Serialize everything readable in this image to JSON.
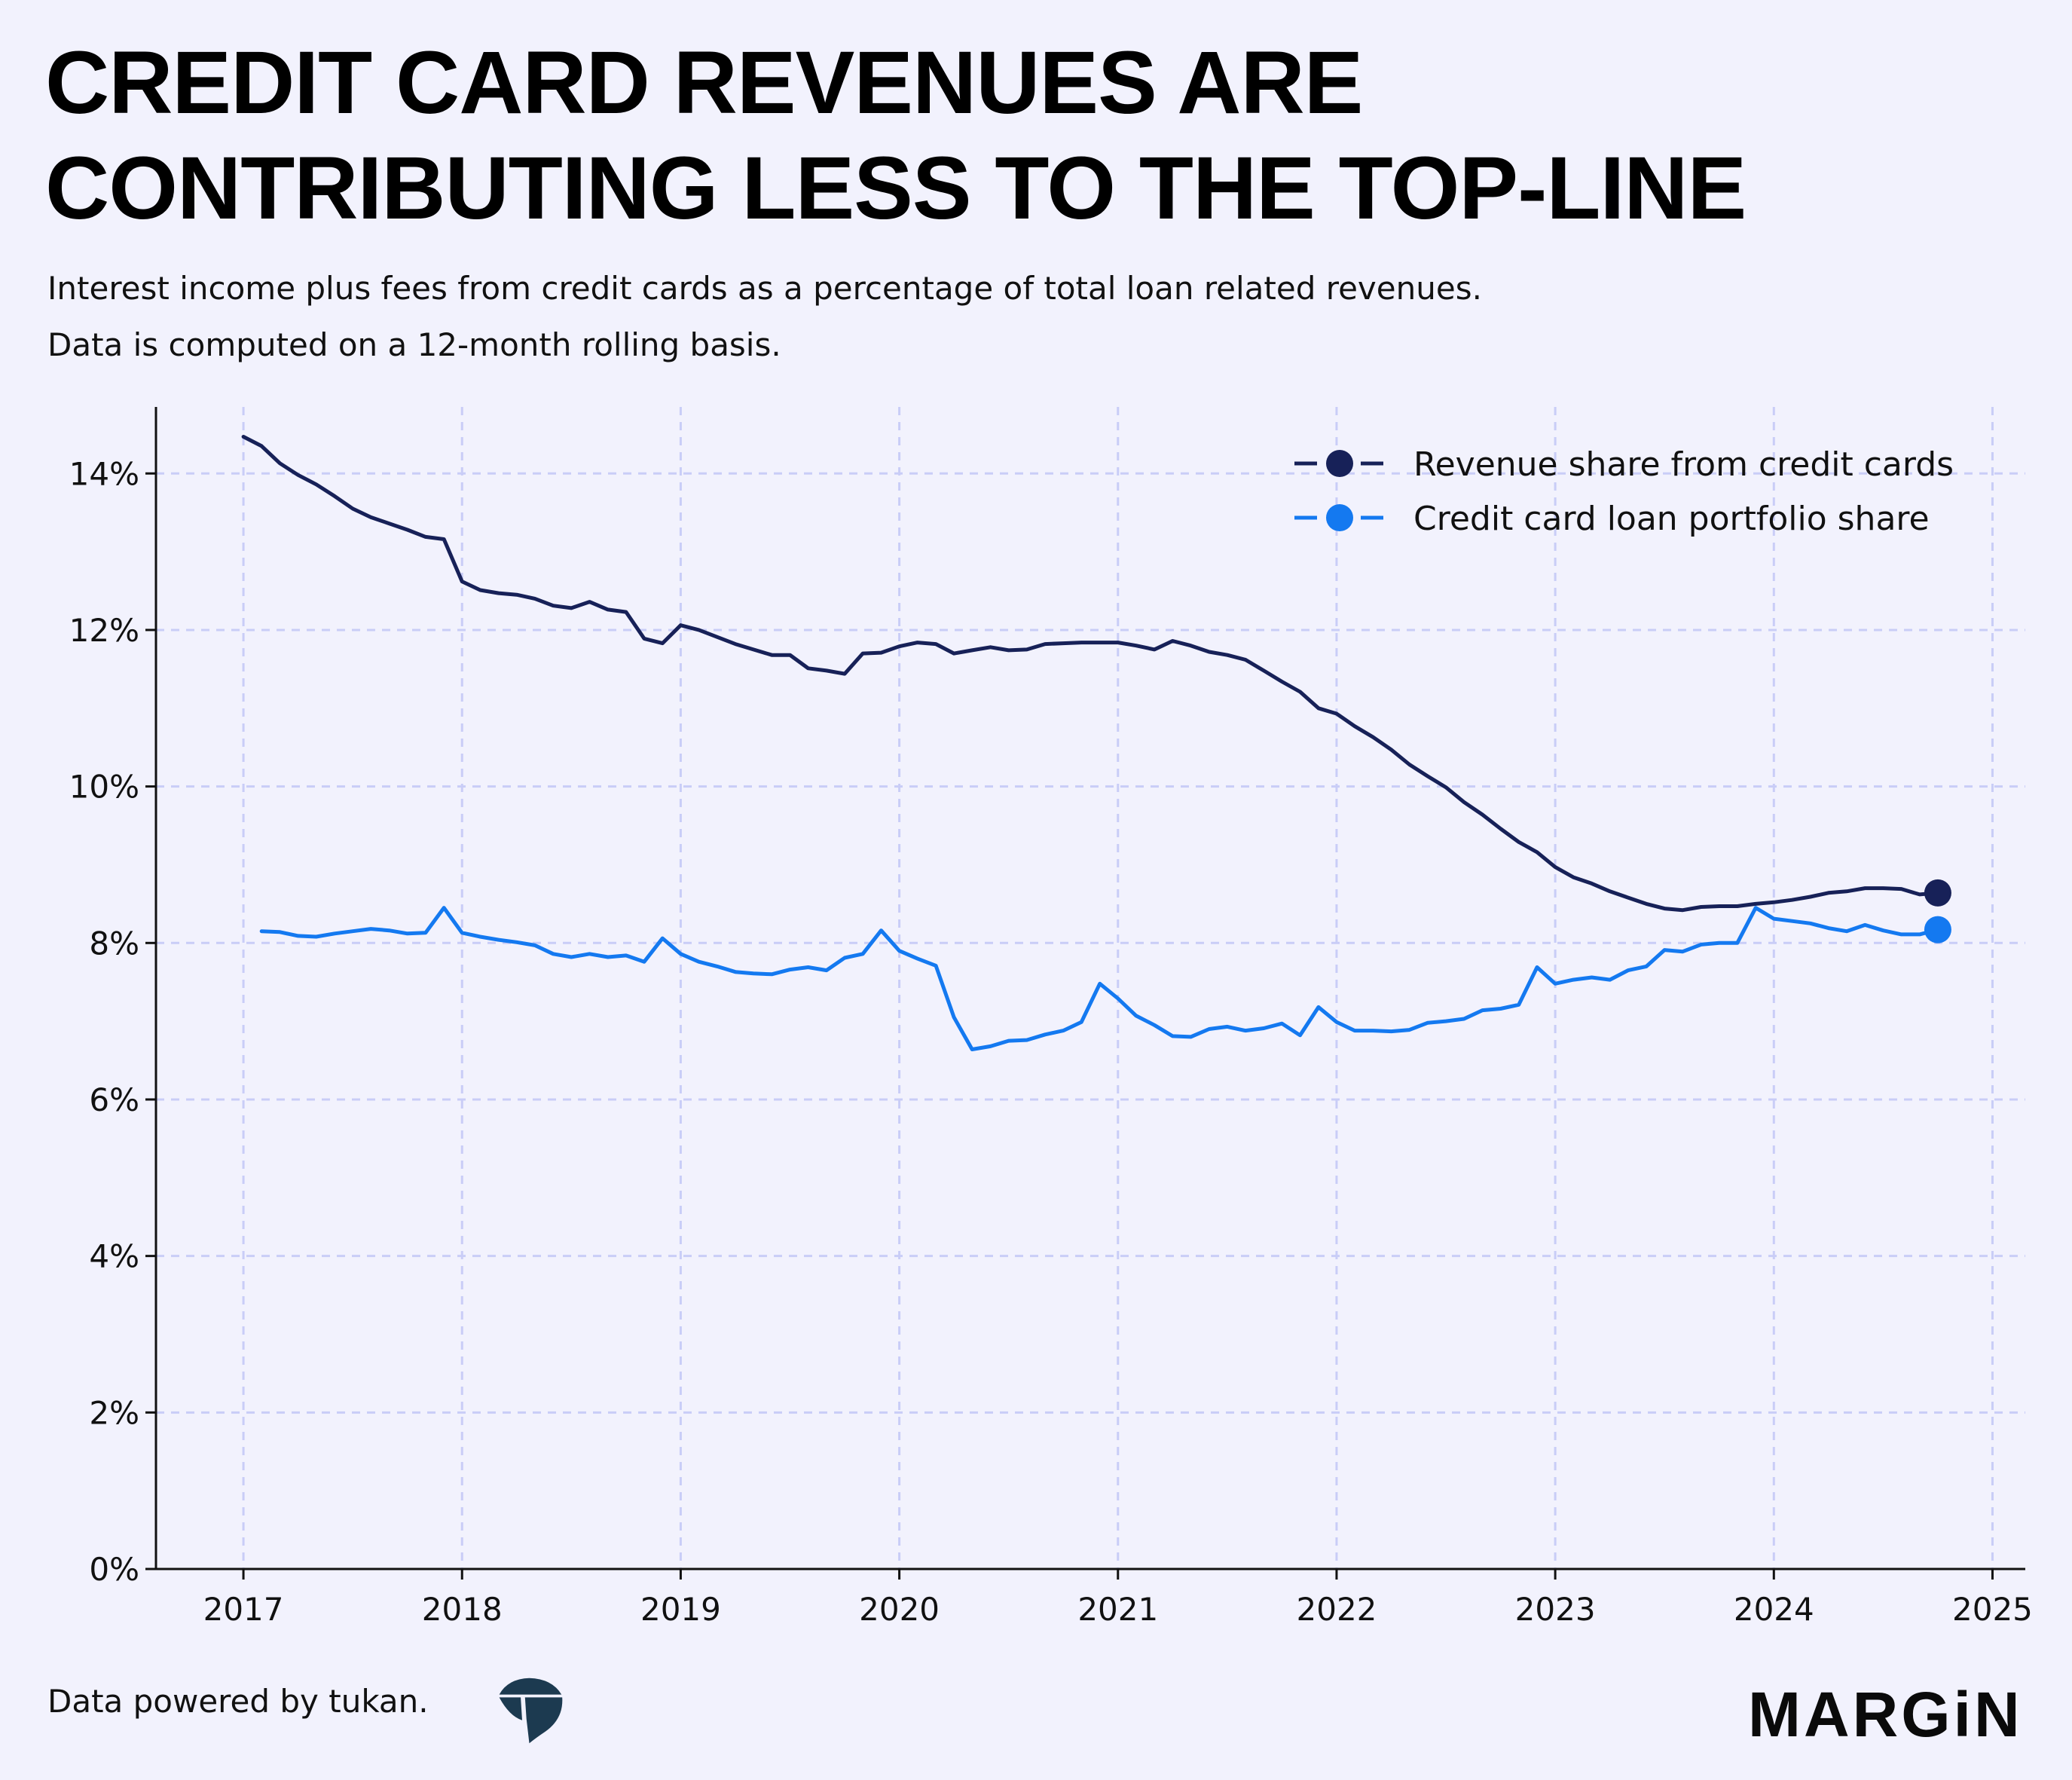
{
  "title_lines": [
    "CREDIT CARD REVENUES ARE",
    "CONTRIBUTING LESS TO THE TOP-LINE"
  ],
  "subtitle_lines": [
    "Interest income plus fees from credit cards as a percentage of total loan related revenues.",
    "Data is computed on a 12-month rolling basis."
  ],
  "footer": {
    "source_text": "Data powered by tukan.",
    "brand_logo_text": "MARGiN"
  },
  "colors": {
    "background": "#f2f2fd",
    "grid": "#c9cdf7",
    "axis": "#111111",
    "revenue_share": "#172158",
    "portfolio_share": "#1479f0"
  },
  "chart_data": {
    "type": "line",
    "title": "",
    "xlabel": "",
    "ylabel": "",
    "xlim": [
      2016.6,
      2025.15
    ],
    "ylim": [
      0,
      14.85
    ],
    "x_ticks": [
      2017,
      2018,
      2019,
      2020,
      2021,
      2022,
      2023,
      2024,
      2025
    ],
    "x_tick_labels": [
      "2017",
      "2018",
      "2019",
      "2020",
      "2021",
      "2022",
      "2023",
      "2024",
      "2025"
    ],
    "y_ticks": [
      0,
      2,
      4,
      6,
      8,
      10,
      12,
      14
    ],
    "y_tick_labels": [
      "0%",
      "2%",
      "4%",
      "6%",
      "8%",
      "10%",
      "12%",
      "14%"
    ],
    "grid": true,
    "legend_position": "top-right",
    "series": [
      {
        "name": "Revenue share from credit cards",
        "color": "#172158",
        "end_marker": true,
        "x": [
          2017.0,
          2017.083,
          2017.167,
          2017.25,
          2017.333,
          2017.417,
          2017.5,
          2017.583,
          2017.667,
          2017.75,
          2017.833,
          2017.917,
          2018.0,
          2018.083,
          2018.167,
          2018.25,
          2018.333,
          2018.417,
          2018.5,
          2018.583,
          2018.667,
          2018.75,
          2018.833,
          2018.917,
          2019.0,
          2019.083,
          2019.167,
          2019.25,
          2019.333,
          2019.417,
          2019.5,
          2019.583,
          2019.667,
          2019.75,
          2019.833,
          2019.917,
          2020.0,
          2020.083,
          2020.167,
          2020.25,
          2020.333,
          2020.417,
          2020.5,
          2020.583,
          2020.667,
          2020.75,
          2020.833,
          2020.917,
          2021.0,
          2021.083,
          2021.167,
          2021.25,
          2021.333,
          2021.417,
          2021.5,
          2021.583,
          2021.667,
          2021.75,
          2021.833,
          2021.917,
          2022.0,
          2022.083,
          2022.167,
          2022.25,
          2022.333,
          2022.417,
          2022.5,
          2022.583,
          2022.667,
          2022.75,
          2022.833,
          2022.917,
          2023.0,
          2023.083,
          2023.167,
          2023.25,
          2023.333,
          2023.417,
          2023.5,
          2023.583,
          2023.667,
          2023.75,
          2023.833,
          2023.917,
          2024.0,
          2024.083,
          2024.167,
          2024.25,
          2024.333,
          2024.417,
          2024.5,
          2024.583,
          2024.667,
          2024.75
        ],
        "y": [
          14.47,
          14.35,
          14.13,
          13.98,
          13.86,
          13.71,
          13.55,
          13.44,
          13.36,
          13.28,
          13.19,
          13.16,
          12.62,
          12.51,
          12.47,
          12.45,
          12.4,
          12.31,
          12.28,
          12.36,
          12.26,
          12.23,
          11.89,
          11.83,
          12.06,
          12.0,
          11.91,
          11.82,
          11.75,
          11.68,
          11.68,
          11.51,
          11.48,
          11.44,
          11.7,
          11.71,
          11.79,
          11.84,
          11.82,
          11.7,
          11.74,
          11.78,
          11.74,
          11.75,
          11.82,
          11.83,
          11.84,
          11.84,
          11.84,
          11.8,
          11.75,
          11.86,
          11.8,
          11.72,
          11.68,
          11.62,
          11.48,
          11.34,
          11.21,
          11.0,
          10.93,
          10.77,
          10.63,
          10.47,
          10.28,
          10.13,
          9.99,
          9.8,
          9.64,
          9.46,
          9.29,
          9.16,
          8.97,
          8.84,
          8.76,
          8.66,
          8.58,
          8.5,
          8.44,
          8.42,
          8.46,
          8.47,
          8.47,
          8.5,
          8.52,
          8.55,
          8.59,
          8.64,
          8.66,
          8.7,
          8.7,
          8.69,
          8.62,
          8.64
        ]
      },
      {
        "name": "Credit card loan portfolio share",
        "color": "#1479f0",
        "end_marker": true,
        "x": [
          2017.083,
          2017.167,
          2017.25,
          2017.333,
          2017.417,
          2017.5,
          2017.583,
          2017.667,
          2017.75,
          2017.833,
          2017.917,
          2018.0,
          2018.083,
          2018.167,
          2018.25,
          2018.333,
          2018.417,
          2018.5,
          2018.583,
          2018.667,
          2018.75,
          2018.833,
          2018.917,
          2019.0,
          2019.083,
          2019.167,
          2019.25,
          2019.333,
          2019.417,
          2019.5,
          2019.583,
          2019.667,
          2019.75,
          2019.833,
          2019.917,
          2020.0,
          2020.083,
          2020.167,
          2020.25,
          2020.333,
          2020.417,
          2020.5,
          2020.583,
          2020.667,
          2020.75,
          2020.833,
          2020.917,
          2021.0,
          2021.083,
          2021.167,
          2021.25,
          2021.333,
          2021.417,
          2021.5,
          2021.583,
          2021.667,
          2021.75,
          2021.833,
          2021.917,
          2022.0,
          2022.083,
          2022.167,
          2022.25,
          2022.333,
          2022.417,
          2022.5,
          2022.583,
          2022.667,
          2022.75,
          2022.833,
          2022.917,
          2023.0,
          2023.083,
          2023.167,
          2023.25,
          2023.333,
          2023.417,
          2023.5,
          2023.583,
          2023.667,
          2023.75,
          2023.833,
          2023.917,
          2024.0,
          2024.083,
          2024.167,
          2024.25,
          2024.333,
          2024.417,
          2024.5,
          2024.583,
          2024.667,
          2024.75
        ],
        "y": [
          8.15,
          8.14,
          8.09,
          8.08,
          8.12,
          8.15,
          8.18,
          8.16,
          8.12,
          8.13,
          8.45,
          8.13,
          8.08,
          8.04,
          8.01,
          7.97,
          7.86,
          7.82,
          7.86,
          7.82,
          7.84,
          7.76,
          8.06,
          7.86,
          7.76,
          7.7,
          7.63,
          7.61,
          7.6,
          7.66,
          7.69,
          7.65,
          7.81,
          7.86,
          8.16,
          7.9,
          7.8,
          7.71,
          7.05,
          6.64,
          6.68,
          6.75,
          6.76,
          6.83,
          6.88,
          6.99,
          7.48,
          7.29,
          7.07,
          6.95,
          6.81,
          6.8,
          6.9,
          6.93,
          6.88,
          6.91,
          6.97,
          6.82,
          7.18,
          6.99,
          6.88,
          6.88,
          6.87,
          6.89,
          6.98,
          7.0,
          7.03,
          7.14,
          7.16,
          7.21,
          7.69,
          7.48,
          7.53,
          7.56,
          7.53,
          7.65,
          7.7,
          7.91,
          7.89,
          7.98,
          8.0,
          8.0,
          8.45,
          8.31,
          8.28,
          8.25,
          8.19,
          8.15,
          8.23,
          8.16,
          8.11,
          8.11,
          8.17
        ]
      }
    ]
  }
}
